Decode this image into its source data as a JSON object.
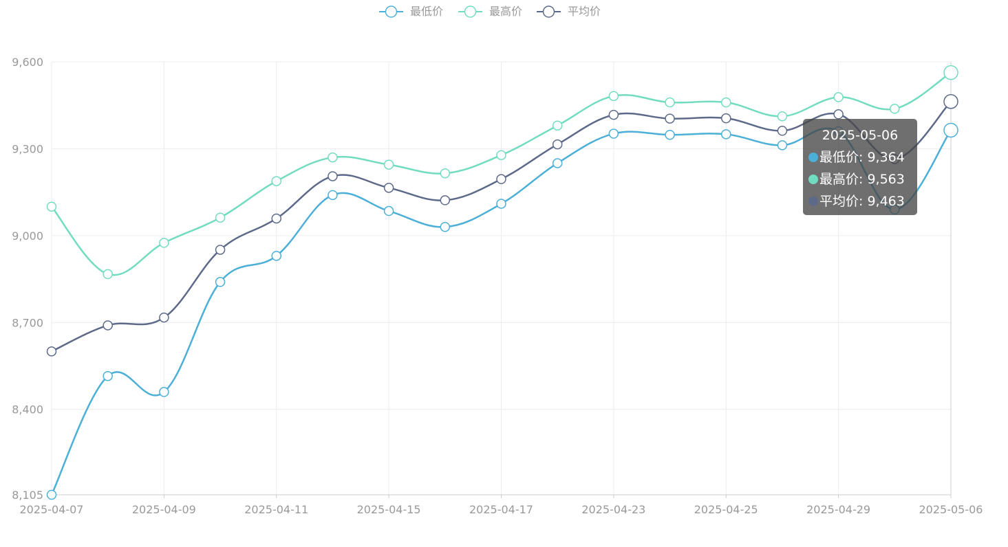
{
  "chart_data": {
    "type": "line",
    "smooth": true,
    "title": "",
    "xlabel": "",
    "ylabel": "",
    "x": [
      "2025-04-07",
      "2025-04-08",
      "2025-04-09",
      "2025-04-10",
      "2025-04-11",
      "2025-04-13",
      "2025-04-15",
      "2025-04-16",
      "2025-04-17",
      "2025-04-18",
      "2025-04-23",
      "2025-04-24",
      "2025-04-25",
      "2025-04-27",
      "2025-04-29",
      "2025-04-30",
      "2025-05-06"
    ],
    "x_tick_labels": [
      "2025-04-07",
      "2025-04-09",
      "2025-04-11",
      "2025-04-15",
      "2025-04-17",
      "2025-04-23",
      "2025-04-25",
      "2025-04-29",
      "2025-05-06"
    ],
    "ylim": [
      8105,
      9600
    ],
    "y_tick_labels": [
      "8,105",
      "8,400",
      "8,700",
      "9,000",
      "9,300",
      "9,600"
    ],
    "grid": true,
    "legend_position": "top-center",
    "series": [
      {
        "name": "最低价",
        "color": "#4bafd7",
        "values": [
          8105,
          8515,
          8460,
          8840,
          8930,
          9140,
          9085,
          9030,
          9110,
          9250,
          9352,
          9348,
          9350,
          9312,
          9360,
          9090,
          9364
        ]
      },
      {
        "name": "最高价",
        "color": "#72dcc0",
        "values": [
          9100,
          8867,
          8975,
          9062,
          9188,
          9270,
          9245,
          9215,
          9278,
          9380,
          9482,
          9460,
          9460,
          9412,
          9478,
          9438,
          9563
        ]
      },
      {
        "name": "平均价",
        "color": "#5d6989",
        "values": [
          8600,
          8690,
          8717,
          8951,
          9059,
          9205,
          9165,
          9122,
          9195,
          9315,
          9417,
          9404,
          9405,
          9362,
          9419,
          9264,
          9463
        ]
      }
    ]
  },
  "tooltip": {
    "date": "2025-05-06",
    "rows": [
      {
        "label": "最低价: 9,364",
        "color": "#4bafd7"
      },
      {
        "label": "最高价: 9,563",
        "color": "#72dcc0"
      },
      {
        "label": "平均价: 9,463",
        "color": "#5d6989"
      }
    ]
  }
}
